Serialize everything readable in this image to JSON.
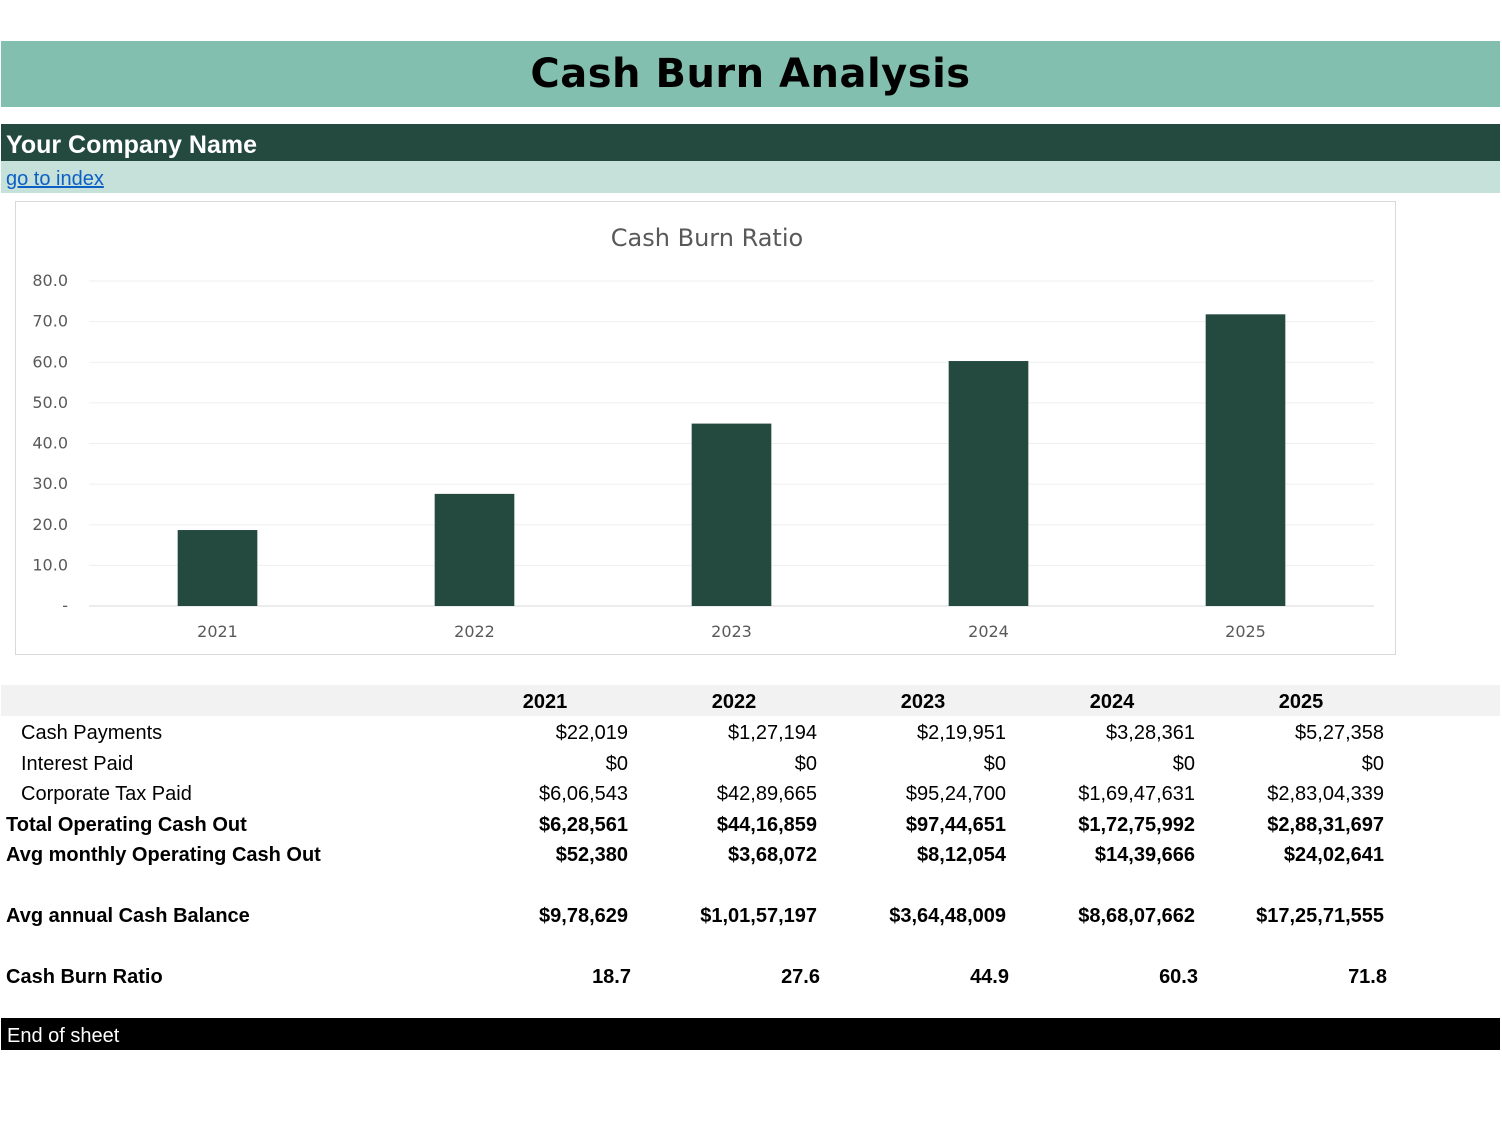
{
  "header": {
    "title": "Cash Burn Analysis"
  },
  "company": {
    "name": "Your Company Name"
  },
  "nav": {
    "link_label": "go to index"
  },
  "chart_data": {
    "type": "bar",
    "title": "Cash Burn Ratio",
    "categories": [
      "2021",
      "2022",
      "2023",
      "2024",
      "2025"
    ],
    "values": [
      18.7,
      27.6,
      44.9,
      60.3,
      71.8
    ],
    "ylim": [
      0,
      80
    ],
    "yticks": [
      "-",
      "10.0",
      "20.0",
      "30.0",
      "40.0",
      "50.0",
      "60.0",
      "70.0",
      "80.0"
    ],
    "grid": true,
    "bar_color": "#244a40"
  },
  "table": {
    "years": [
      "2021",
      "2022",
      "2023",
      "2024",
      "2025"
    ],
    "rows": [
      {
        "label": "Cash Payments",
        "values": [
          "$22,019",
          "$1,27,194",
          "$2,19,951",
          "$3,28,361",
          "$5,27,358"
        ]
      },
      {
        "label": "Interest Paid",
        "values": [
          "$0",
          "$0",
          "$0",
          "$0",
          "$0"
        ]
      },
      {
        "label": "Corporate Tax Paid",
        "values": [
          "$6,06,543",
          "$42,89,665",
          "$95,24,700",
          "$1,69,47,631",
          "$2,83,04,339"
        ]
      },
      {
        "label": "Total Operating Cash Out",
        "values": [
          "$6,28,561",
          "$44,16,859",
          "$97,44,651",
          "$1,72,75,992",
          "$2,88,31,697"
        ]
      },
      {
        "label": "Avg monthly Operating Cash Out",
        "values": [
          "$52,380",
          "$3,68,072",
          "$8,12,054",
          "$14,39,666",
          "$24,02,641"
        ]
      },
      {
        "label": "Avg annual Cash Balance",
        "values": [
          "$9,78,629",
          "$1,01,57,197",
          "$3,64,48,009",
          "$8,68,07,662",
          "$17,25,71,555"
        ]
      },
      {
        "label": "Cash Burn Ratio",
        "values": [
          "18.7",
          "27.6",
          "44.9",
          "60.3",
          "71.8"
        ]
      }
    ]
  },
  "footer": {
    "text": "End of sheet"
  },
  "colors": {
    "title_band": "#83bfae",
    "company_band": "#244a40",
    "link_band": "#c5e1d9",
    "bar": "#244a40"
  }
}
